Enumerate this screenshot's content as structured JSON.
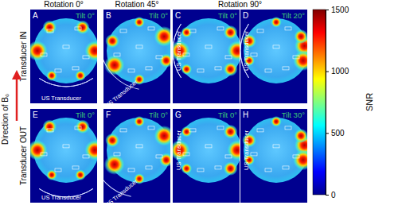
{
  "chart_data": {
    "type": "heatmap",
    "column_titles": [
      "Rotation 0°",
      "Rotation 45°",
      "Rotation 90°"
    ],
    "row_titles": [
      "Transducer IN",
      "Transducer OUT"
    ],
    "side_label": "Direction of B₀",
    "panels": [
      {
        "letter": "A",
        "tilt": "Tilt 0°",
        "transducer": "US Transducer"
      },
      {
        "letter": "B",
        "tilt": "Tilt 0°",
        "transducer": "US Transducer"
      },
      {
        "letter": "C",
        "tilt": "Tilt 0°",
        "transducer": "US Transducer"
      },
      {
        "letter": "D",
        "tilt": "Tilt 20°",
        "transducer": "US Transducer"
      },
      {
        "letter": "E",
        "tilt": "Tilt 0°",
        "transducer": "US Transducer"
      },
      {
        "letter": "F",
        "tilt": "Tilt 0°",
        "transducer": "US Transducer"
      },
      {
        "letter": "G",
        "tilt": "Tilt 0°",
        "transducer": "US Transducer"
      },
      {
        "letter": "H",
        "tilt": "Tilt 30°",
        "transducer": "US Transducer"
      }
    ],
    "colorbar": {
      "label": "SNR",
      "range": [
        0,
        1500
      ],
      "ticks": [
        0,
        500,
        1000,
        1500
      ]
    }
  }
}
